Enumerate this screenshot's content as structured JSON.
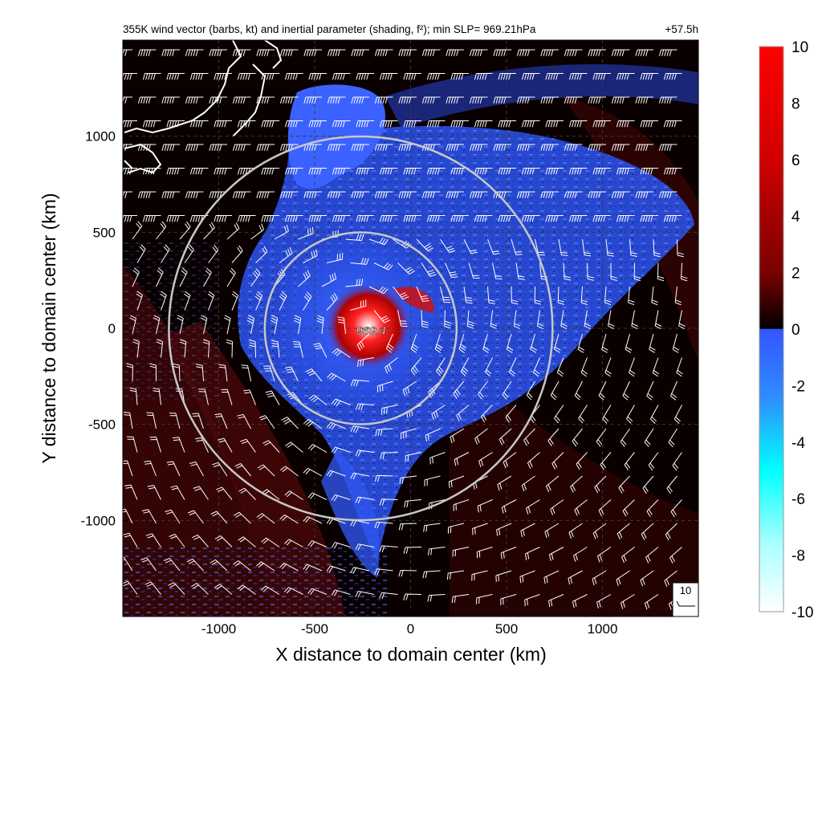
{
  "chart_data": {
    "type": "heatmap",
    "title": "355K wind vector (barbs, kt) and inertial parameter (shading, f²); min SLP= 969.21hPa",
    "forecast_time": "+57.5h",
    "xlabel": "X distance to domain center (km)",
    "ylabel": "Y distance to domain center (km)",
    "xlim": [
      -1500,
      1500
    ],
    "ylim": [
      -1500,
      1500
    ],
    "xticks": [
      -1000,
      -500,
      0,
      500,
      1000
    ],
    "yticks": [
      -1000,
      -500,
      0,
      500,
      1000
    ],
    "grid": "dashed",
    "colorbar": {
      "range": [
        -10,
        10
      ],
      "ticks": [
        10,
        8,
        6,
        4,
        2,
        0,
        -2,
        -4,
        -6,
        -8,
        -10
      ],
      "colors_positive": [
        "#000000",
        "#3a0000",
        "#8a0000",
        "#d00000",
        "#ff0000"
      ],
      "colors_negative": [
        "#3355ff",
        "#2f8cff",
        "#00ffff",
        "#aaffff",
        "#ffffff"
      ]
    },
    "center_label": {
      "text": "969.4",
      "x": -260,
      "y": 0
    },
    "rings": [
      {
        "center_x": -260,
        "center_y": 0,
        "radius_km": 500
      },
      {
        "center_x": -260,
        "center_y": 0,
        "radius_km": 1000
      }
    ],
    "reference_barb": {
      "label": "10",
      "speed_kt": 10
    }
  }
}
